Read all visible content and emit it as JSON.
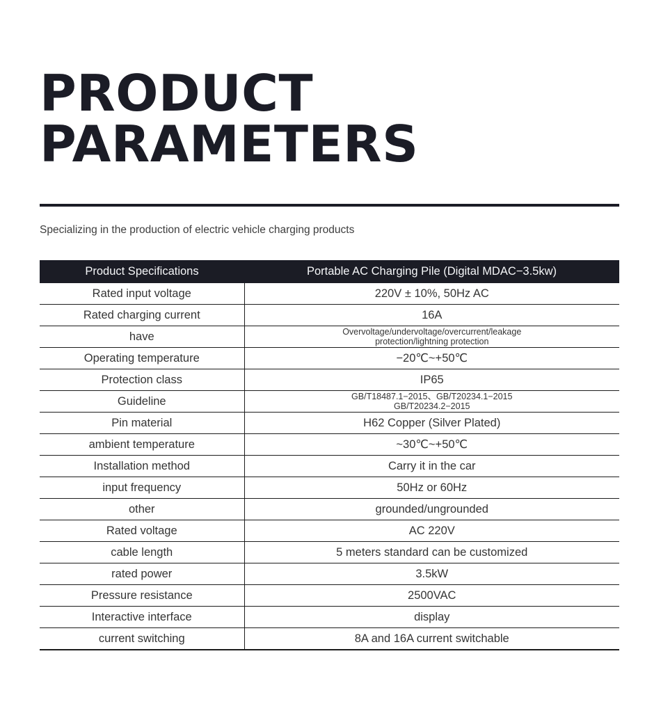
{
  "header": {
    "title_line1": "PRODUCT",
    "title_line2": "PARAMETERS",
    "subtitle": "Specializing in the production of electric vehicle charging products"
  },
  "table": {
    "header": {
      "col1": "Product Specifications",
      "col2": "Portable AC Charging Pile (Digital MDAC−3.5kw)"
    },
    "rows": [
      {
        "label": "Rated input voltage",
        "value": "220V ± 10%, 50Hz AC",
        "small": false
      },
      {
        "label": "Rated charging current",
        "value": "16A",
        "small": false
      },
      {
        "label": "have",
        "value": "Overvoltage/undervoltage/overcurrent/leakage\nprotection/lightning protection",
        "small": true
      },
      {
        "label": "Operating temperature",
        "value": "−20℃~+50℃",
        "small": false
      },
      {
        "label": "Protection class",
        "value": "IP65",
        "small": false
      },
      {
        "label": "Guideline",
        "value": "GB/T18487.1−2015、GB/T20234.1−2015\nGB/T20234.2−2015",
        "small": true
      },
      {
        "label": "Pin material",
        "value": "H62 Copper (Silver Plated)",
        "small": false
      },
      {
        "label": "ambient temperature",
        "value": "~30℃~+50℃",
        "small": false
      },
      {
        "label": "Installation method",
        "value": "Carry it in the car",
        "small": false
      },
      {
        "label": "input frequency",
        "value": "50Hz or 60Hz",
        "small": false
      },
      {
        "label": "other",
        "value": "grounded/ungrounded",
        "small": false
      },
      {
        "label": "Rated voltage",
        "value": "AC 220V",
        "small": false
      },
      {
        "label": "cable length",
        "value": "5 meters standard can be customized",
        "small": false
      },
      {
        "label": "rated power",
        "value": "3.5kW",
        "small": false
      },
      {
        "label": "Pressure resistance",
        "value": "2500VAC",
        "small": false
      },
      {
        "label": "Interactive interface",
        "value": "display",
        "small": false
      },
      {
        "label": "current switching",
        "value": "8A and 16A current switchable",
        "small": false
      }
    ]
  },
  "colors": {
    "title_ink": "#1b1c26",
    "rule": "#1b1c26",
    "table_header_bg": "#1b1c25",
    "table_header_text": "#f5f6f8",
    "body_text": "#353535",
    "grid_line": "#1c1c1c",
    "background": "#ffffff"
  }
}
